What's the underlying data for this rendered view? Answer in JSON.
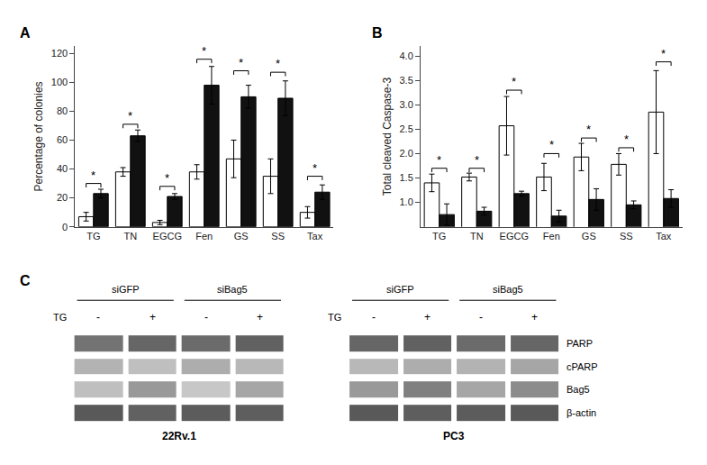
{
  "chart_data": [
    {
      "type": "bar",
      "title": "A",
      "y_label": "Percentage of colonies",
      "categories": [
        "TG",
        "TN",
        "EGCG",
        "Fen",
        "GS",
        "SS",
        "Tax"
      ],
      "ylim": [
        0,
        125
      ],
      "yticks": [
        0,
        20,
        40,
        60,
        80,
        100,
        120
      ],
      "grid": false,
      "series": [
        {
          "color": "#ffffff",
          "values": [
            7,
            38,
            3,
            38,
            47,
            35,
            10
          ],
          "errors": [
            3,
            3,
            1.5,
            5,
            13,
            12,
            4
          ]
        },
        {
          "color": "#111111",
          "values": [
            23,
            63,
            21,
            98,
            90,
            89,
            24
          ],
          "errors": [
            3,
            4,
            2,
            13,
            8,
            12,
            5
          ]
        }
      ],
      "annotations": [
        {
          "x": "TG",
          "y": 30,
          "text": "*"
        },
        {
          "x": "TN",
          "y": 71,
          "text": "*"
        },
        {
          "x": "EGCG",
          "y": 28,
          "text": "*"
        },
        {
          "x": "Fen",
          "y": 116,
          "text": "*"
        },
        {
          "x": "GS",
          "y": 108,
          "text": "*"
        },
        {
          "x": "SS",
          "y": 107,
          "text": "*"
        },
        {
          "x": "Tax",
          "y": 35,
          "text": "*"
        }
      ]
    },
    {
      "type": "bar",
      "title": "B",
      "y_label": "Total cleaved Caspase-3",
      "categories": [
        "TG",
        "TN",
        "EGCG",
        "Fen",
        "GS",
        "SS",
        "Tax"
      ],
      "ylim": [
        0.5,
        4.2
      ],
      "yticks": [
        {
          "value": 1.0,
          "label": "1.0"
        },
        1.5,
        {
          "value": 2.0,
          "label": "2.0"
        },
        2.5,
        {
          "value": 3.0,
          "label": "3.0"
        },
        3.5,
        {
          "value": 4.0,
          "label": "4.0"
        }
      ],
      "grid": false,
      "series": [
        {
          "color": "#ffffff",
          "values": [
            1.4,
            1.52,
            2.57,
            1.52,
            1.93,
            1.78,
            2.85
          ],
          "errors": [
            0.18,
            0.08,
            0.6,
            0.28,
            0.28,
            0.22,
            0.85
          ]
        },
        {
          "color": "#111111",
          "values": [
            0.75,
            0.82,
            1.18,
            0.72,
            1.06,
            0.95,
            1.08
          ],
          "errors": [
            0.22,
            0.08,
            0.05,
            0.12,
            0.22,
            0.08,
            0.18
          ]
        }
      ],
      "annotations": [
        {
          "x": "TG",
          "y": 1.7,
          "text": "*"
        },
        {
          "x": "TN",
          "y": 1.7,
          "text": "*"
        },
        {
          "x": "EGCG",
          "y": 3.3,
          "text": "*"
        },
        {
          "x": "Fen",
          "y": 2.0,
          "text": "*"
        },
        {
          "x": "GS",
          "y": 2.32,
          "text": "*"
        },
        {
          "x": "SS",
          "y": 2.12,
          "text": "*"
        },
        {
          "x": "Tax",
          "y": 3.88,
          "text": "*"
        }
      ]
    },
    {
      "type": "heatmap",
      "title": "C",
      "groups": [
        "siGFP",
        "siBag5"
      ],
      "lane_title": "TG",
      "lanes": [
        "-",
        "+",
        "-",
        "+"
      ],
      "rows": [
        "PARP",
        "cPARP",
        "Bag5",
        "β-actin"
      ],
      "zlim": [
        0,
        1
      ],
      "blots": [
        {
          "name": "22Rv.1",
          "cells": [
            [
              0.45,
              0.4,
              0.42,
              0.38
            ],
            [
              0.7,
              0.75,
              0.68,
              0.72
            ],
            [
              0.75,
              0.6,
              0.78,
              0.65
            ],
            [
              0.35,
              0.38,
              0.36,
              0.37
            ]
          ]
        },
        {
          "name": "PC3",
          "cells": [
            [
              0.4,
              0.38,
              0.42,
              0.4
            ],
            [
              0.72,
              0.68,
              0.7,
              0.65
            ],
            [
              0.6,
              0.5,
              0.65,
              0.55
            ],
            [
              0.35,
              0.37,
              0.36,
              0.35
            ]
          ]
        }
      ]
    }
  ]
}
